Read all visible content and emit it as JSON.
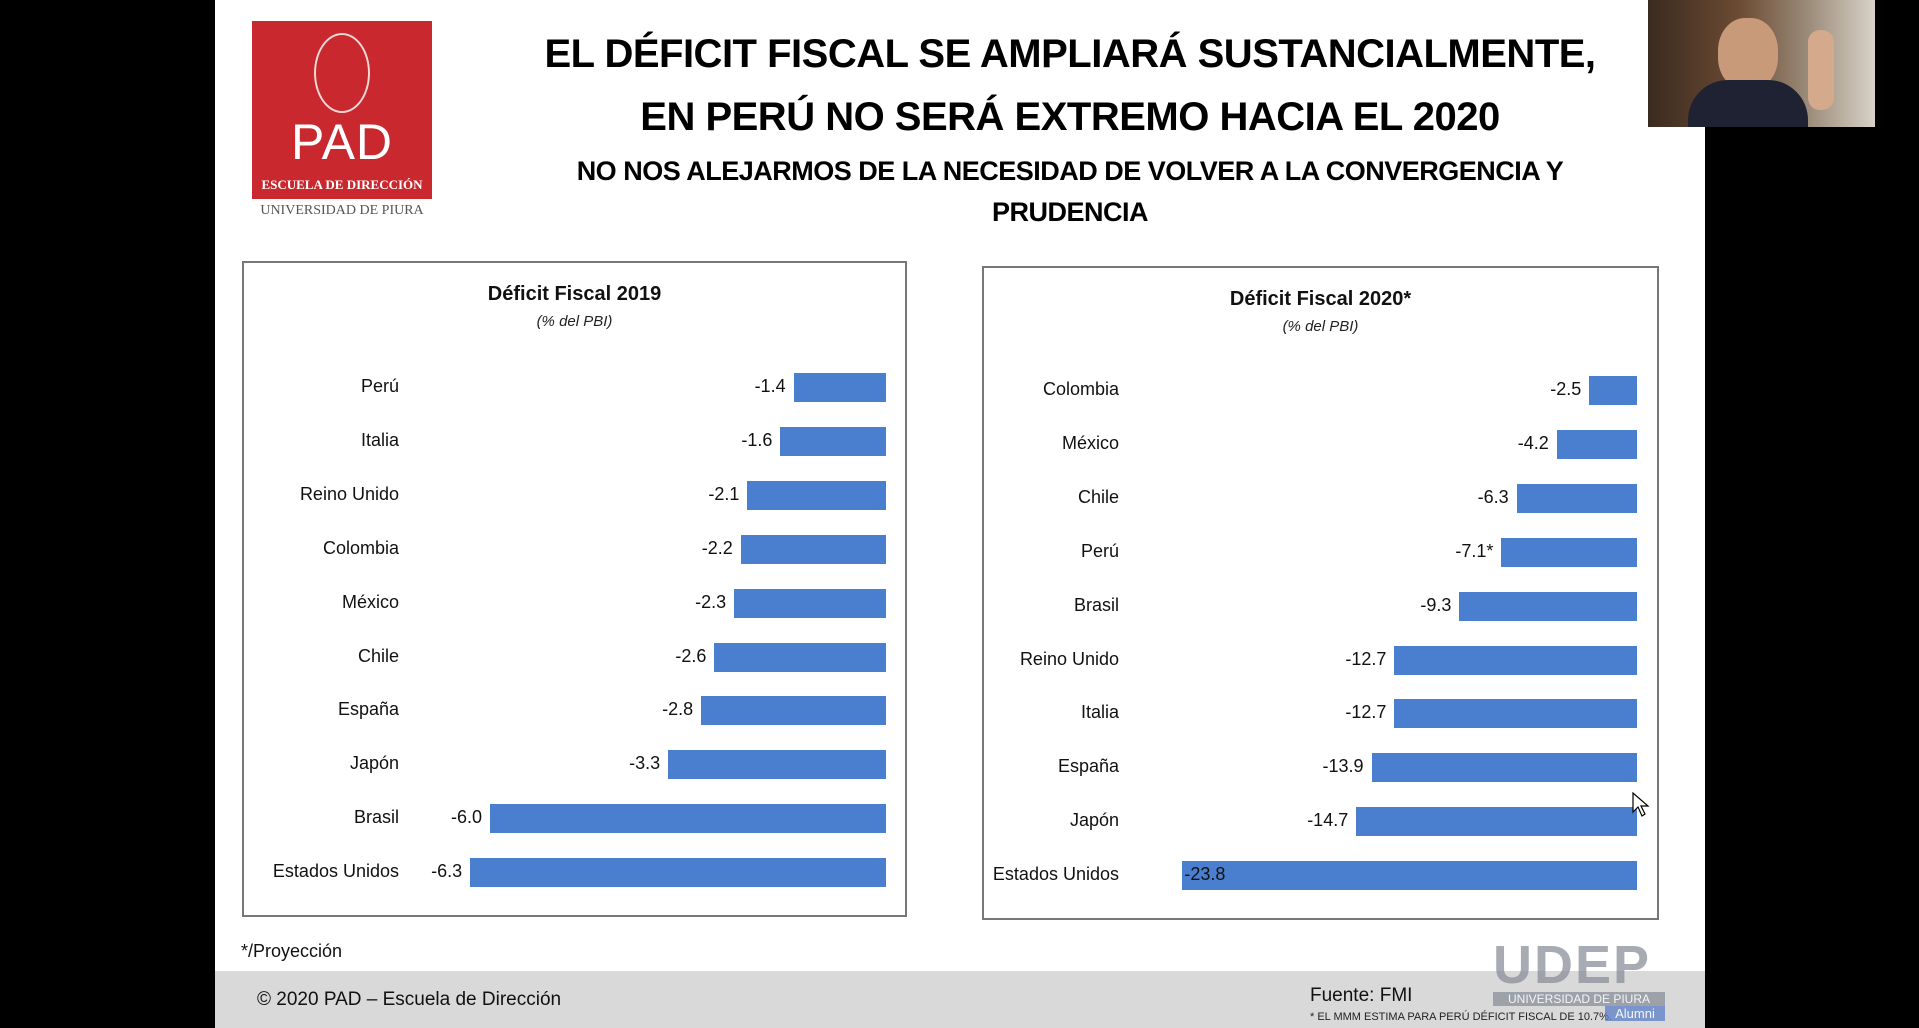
{
  "logo": {
    "text": "PAD",
    "subtitle": "ESCUELA DE DIRECCIÓN",
    "institution": "UNIVERSIDAD DE PIURA",
    "color": "#c8282e"
  },
  "header": {
    "title_line1": "EL DÉFICIT FISCAL SE AMPLIARÁ SUSTANCIALMENTE,",
    "title_line2": "EN PERÚ NO SERÁ EXTREMO HACIA EL 2020",
    "subtitle_line1": "NO NOS ALEJARMOS DE LA NECESIDAD DE VOLVER A LA CONVERGENCIA Y",
    "subtitle_line2": "PRUDENCIA"
  },
  "chart_data": [
    {
      "type": "bar",
      "orientation": "horizontal",
      "title": "Déficit Fiscal 2019",
      "subtitle": "(% del PBI)",
      "bar_color": "#4a7fcf",
      "categories": [
        "Perú",
        "Italia",
        "Reino Unido",
        "Colombia",
        "México",
        "Chile",
        "España",
        "Japón",
        "Brasil",
        "Estados Unidos"
      ],
      "values": [
        -1.4,
        -1.6,
        -2.1,
        -2.2,
        -2.3,
        -2.6,
        -2.8,
        -3.3,
        -6.0,
        -6.3
      ],
      "labels": [
        "-1.4",
        "-1.6",
        "-2.1",
        "-2.2",
        "-2.3",
        "-2.6",
        "-2.8",
        "-3.3",
        "-6.0",
        "-6.3"
      ]
    },
    {
      "type": "bar",
      "orientation": "horizontal",
      "title": "Déficit Fiscal 2020*",
      "subtitle": "(% del PBI)",
      "bar_color": "#4a7fcf",
      "categories": [
        "Colombia",
        "México",
        "Chile",
        "Perú",
        "Brasil",
        "Reino Unido",
        "Italia",
        "España",
        "Japón",
        "Estados Unidos"
      ],
      "values": [
        -2.5,
        -4.2,
        -6.3,
        -7.1,
        -9.3,
        -12.7,
        -12.7,
        -13.9,
        -14.7,
        -23.8
      ],
      "labels": [
        "-2.5",
        "-4.2",
        "-6.3",
        "-7.1*",
        "-9.3",
        "-12.7",
        "-12.7",
        "-13.9",
        "-14.7",
        "-23.8"
      ]
    }
  ],
  "notes": {
    "projection": "*/Proyección"
  },
  "footer": {
    "copyright": "© 2020 PAD – Escuela de Dirección",
    "source": "Fuente: FMI",
    "footnote": "* EL MMM ESTIMA PARA PERÚ DÉFICIT FISCAL DE 10.7%."
  },
  "watermark": {
    "brand": "UDEP",
    "university": "UNIVERSIDAD DE PIURA",
    "alumni": "Alumni"
  }
}
